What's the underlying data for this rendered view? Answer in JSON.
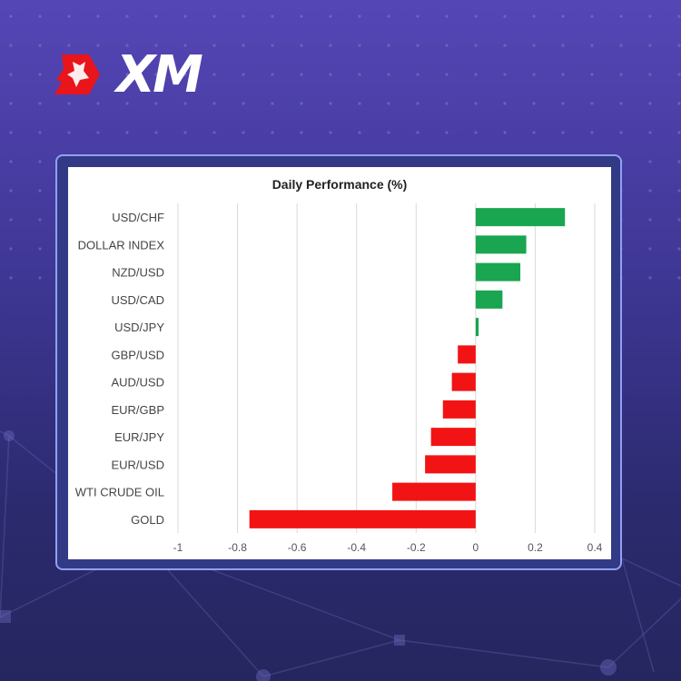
{
  "brand": {
    "logo_text": "XM",
    "logo_mark": "xm-bull-logo"
  },
  "colors": {
    "positive": "#1aa550",
    "negative": "#f21414",
    "background": "#3f3795",
    "frame": "#8fa1f3",
    "grid": "#d9d9d9"
  },
  "chart_data": {
    "type": "bar",
    "orientation": "horizontal",
    "title": "Daily Performance (%)",
    "xlabel": "",
    "ylabel": "",
    "categories": [
      "USD/CHF",
      "DOLLAR INDEX",
      "NZD/USD",
      "USD/CAD",
      "USD/JPY",
      "GBP/USD",
      "AUD/USD",
      "EUR/GBP",
      "EUR/JPY",
      "EUR/USD",
      "WTI CRUDE OIL",
      "GOLD"
    ],
    "values": [
      0.3,
      0.17,
      0.15,
      0.09,
      0.01,
      -0.06,
      -0.08,
      -0.11,
      -0.15,
      -0.17,
      -0.28,
      -0.76
    ],
    "xlim": [
      -1,
      0.4
    ],
    "xticks": [
      "-1",
      "-0.8",
      "-0.6",
      "-0.4",
      "-0.2",
      "0",
      "0.2",
      "0.4"
    ],
    "grid": "vertical",
    "legend": "none"
  }
}
